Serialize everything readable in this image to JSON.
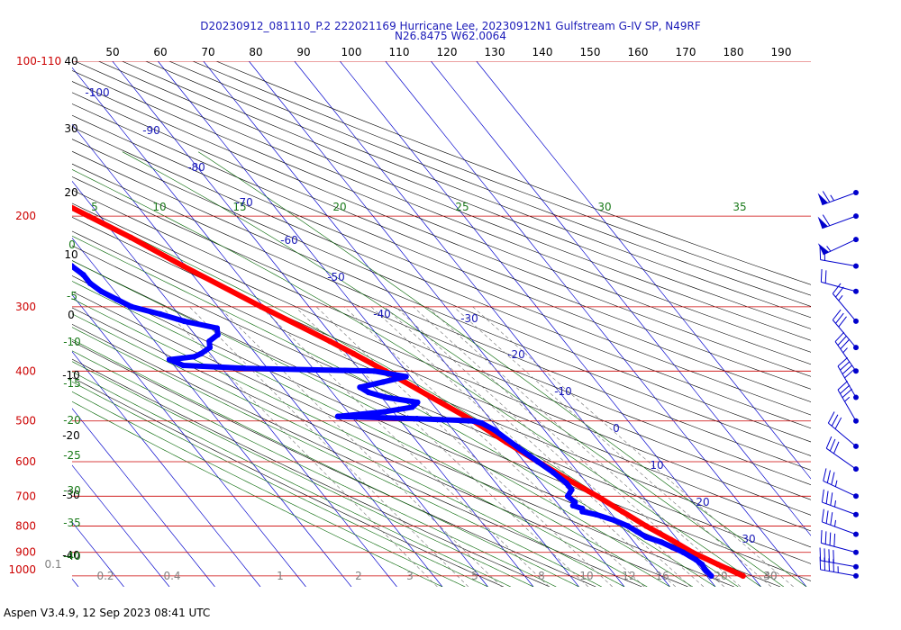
{
  "header": {
    "line1": "D20230912_081110_P.2 222021169 Hurricane Lee, 20230912N1 Gulfstream G-IV SP, N49RF",
    "line2": "N26.8475 W62.0064"
  },
  "footer": {
    "text": "Aspen V3.4.9, 12 Sep 2023  08:41 UTC"
  },
  "chart_data": {
    "type": "skew-t",
    "y_scale": "log-pressure",
    "pressure_labels": [
      {
        "p": 100,
        "text": "100-110"
      },
      {
        "p": 200,
        "text": "200"
      },
      {
        "p": 300,
        "text": "300"
      },
      {
        "p": 400,
        "text": "400"
      },
      {
        "p": 500,
        "text": "500"
      },
      {
        "p": 600,
        "text": "600"
      },
      {
        "p": 700,
        "text": "700"
      },
      {
        "p": 800,
        "text": "800"
      },
      {
        "p": 900,
        "text": "900"
      },
      {
        "p": 1000,
        "text": "1000"
      }
    ],
    "top_scale": [
      "50",
      "60",
      "70",
      "80",
      "90",
      "100",
      "110",
      "120",
      "130",
      "140",
      "150",
      "160",
      "170",
      "180",
      "190"
    ],
    "left_height_labels": [
      "40",
      "30",
      "20",
      "10",
      "0",
      "-10",
      "-20",
      "-30",
      "-40"
    ],
    "green_left_labels": [
      "0",
      "-5",
      "-10",
      "-15",
      "-20",
      "-25",
      "-30",
      "-35",
      "-40"
    ],
    "green_top_labels": [
      "5",
      "10",
      "15",
      "20",
      "25",
      "30",
      "35"
    ],
    "isotherm_labels": [
      "-100",
      "-90",
      "-80",
      "-70",
      "-60",
      "-50",
      "-40",
      "-30",
      "-20",
      "-10",
      "0",
      "10",
      "20",
      "30"
    ],
    "mixing_ratio_labels": [
      "0.1",
      "0.2",
      "0.4",
      "1",
      "2",
      "3",
      "5",
      "8",
      "10",
      "12",
      "16",
      "20",
      "30",
      "40"
    ],
    "temperature_profile": [
      [
        1000,
        28.0
      ],
      [
        950,
        24.5
      ],
      [
        900,
        21.0
      ],
      [
        850,
        18.5
      ],
      [
        800,
        15.5
      ],
      [
        750,
        12.8
      ],
      [
        700,
        10.0
      ],
      [
        650,
        6.5
      ],
      [
        600,
        3.0
      ],
      [
        550,
        -0.5
      ],
      [
        500,
        -4.0
      ],
      [
        450,
        -9.0
      ],
      [
        400,
        -14.5
      ],
      [
        370,
        -18.5
      ],
      [
        350,
        -21.5
      ],
      [
        300,
        -30.5
      ],
      [
        250,
        -40.5
      ],
      [
        220,
        -47.0
      ],
      [
        200,
        -52.5
      ],
      [
        190,
        -55.5
      ]
    ],
    "dewpoint_profile": [
      [
        1000,
        21.0
      ],
      [
        970,
        20.8
      ],
      [
        950,
        21.0
      ],
      [
        930,
        20.5
      ],
      [
        900,
        19.0
      ],
      [
        880,
        17.5
      ],
      [
        860,
        16.0
      ],
      [
        840,
        13.5
      ],
      [
        820,
        12.5
      ],
      [
        800,
        11.5
      ],
      [
        780,
        9.5
      ],
      [
        760,
        6.5
      ],
      [
        750,
        4.0
      ],
      [
        740,
        4.5
      ],
      [
        730,
        3.0
      ],
      [
        720,
        4.0
      ],
      [
        700,
        3.5
      ],
      [
        680,
        5.5
      ],
      [
        660,
        5.5
      ],
      [
        630,
        4.5
      ],
      [
        600,
        3.0
      ],
      [
        560,
        1.0
      ],
      [
        520,
        -1.0
      ],
      [
        505,
        -2.5
      ],
      [
        500,
        -4.0
      ],
      [
        495,
        -16.0
      ],
      [
        490,
        -33.0
      ],
      [
        480,
        -22.0
      ],
      [
        470,
        -15.0
      ],
      [
        460,
        -13.0
      ],
      [
        450,
        -19.0
      ],
      [
        440,
        -22.0
      ],
      [
        430,
        -23.0
      ],
      [
        420,
        -17.0
      ],
      [
        410,
        -11.0
      ],
      [
        400,
        -17.0
      ],
      [
        395,
        -45.0
      ],
      [
        390,
        -58.0
      ],
      [
        380,
        -60.0
      ],
      [
        375,
        -54.0
      ],
      [
        370,
        -52.0
      ],
      [
        360,
        -49.0
      ],
      [
        350,
        -48.0
      ],
      [
        340,
        -45.0
      ],
      [
        330,
        -44.0
      ],
      [
        320,
        -50.0
      ],
      [
        310,
        -54.0
      ],
      [
        300,
        -59.0
      ],
      [
        290,
        -61.0
      ],
      [
        280,
        -63.0
      ],
      [
        270,
        -64.0
      ],
      [
        260,
        -64.0
      ],
      [
        250,
        -65.0
      ],
      [
        240,
        -66.0
      ],
      [
        230,
        -68.0
      ],
      [
        225,
        -70.0
      ]
    ],
    "wind_barbs": [
      {
        "p": 180,
        "dir": 250,
        "speed": 65
      },
      {
        "p": 200,
        "dir": 250,
        "speed": 60
      },
      {
        "p": 222,
        "dir": 245,
        "speed": 55
      },
      {
        "p": 250,
        "dir": 280,
        "speed": 15
      },
      {
        "p": 280,
        "dir": 285,
        "speed": 20
      },
      {
        "p": 320,
        "dir": 320,
        "speed": 25
      },
      {
        "p": 360,
        "dir": 320,
        "speed": 30
      },
      {
        "p": 400,
        "dir": 325,
        "speed": 35
      },
      {
        "p": 450,
        "dir": 330,
        "speed": 40
      },
      {
        "p": 500,
        "dir": 330,
        "speed": 35
      },
      {
        "p": 560,
        "dir": 310,
        "speed": 30
      },
      {
        "p": 620,
        "dir": 305,
        "speed": 30
      },
      {
        "p": 700,
        "dir": 295,
        "speed": 35
      },
      {
        "p": 760,
        "dir": 290,
        "speed": 35
      },
      {
        "p": 830,
        "dir": 290,
        "speed": 35
      },
      {
        "p": 900,
        "dir": 285,
        "speed": 40
      },
      {
        "p": 960,
        "dir": 280,
        "speed": 40
      },
      {
        "p": 1000,
        "dir": 280,
        "speed": 45
      }
    ],
    "colors": {
      "temperature": "#ff0000",
      "dewpoint": "#0000ff",
      "isobar": "#cc0000",
      "isotherm": "#0000cc",
      "dry_adiabat": "#000000",
      "moist_adiabat": "#006400",
      "mixing_ratio": "#6e6e6e",
      "barb": "#0000cc"
    }
  }
}
